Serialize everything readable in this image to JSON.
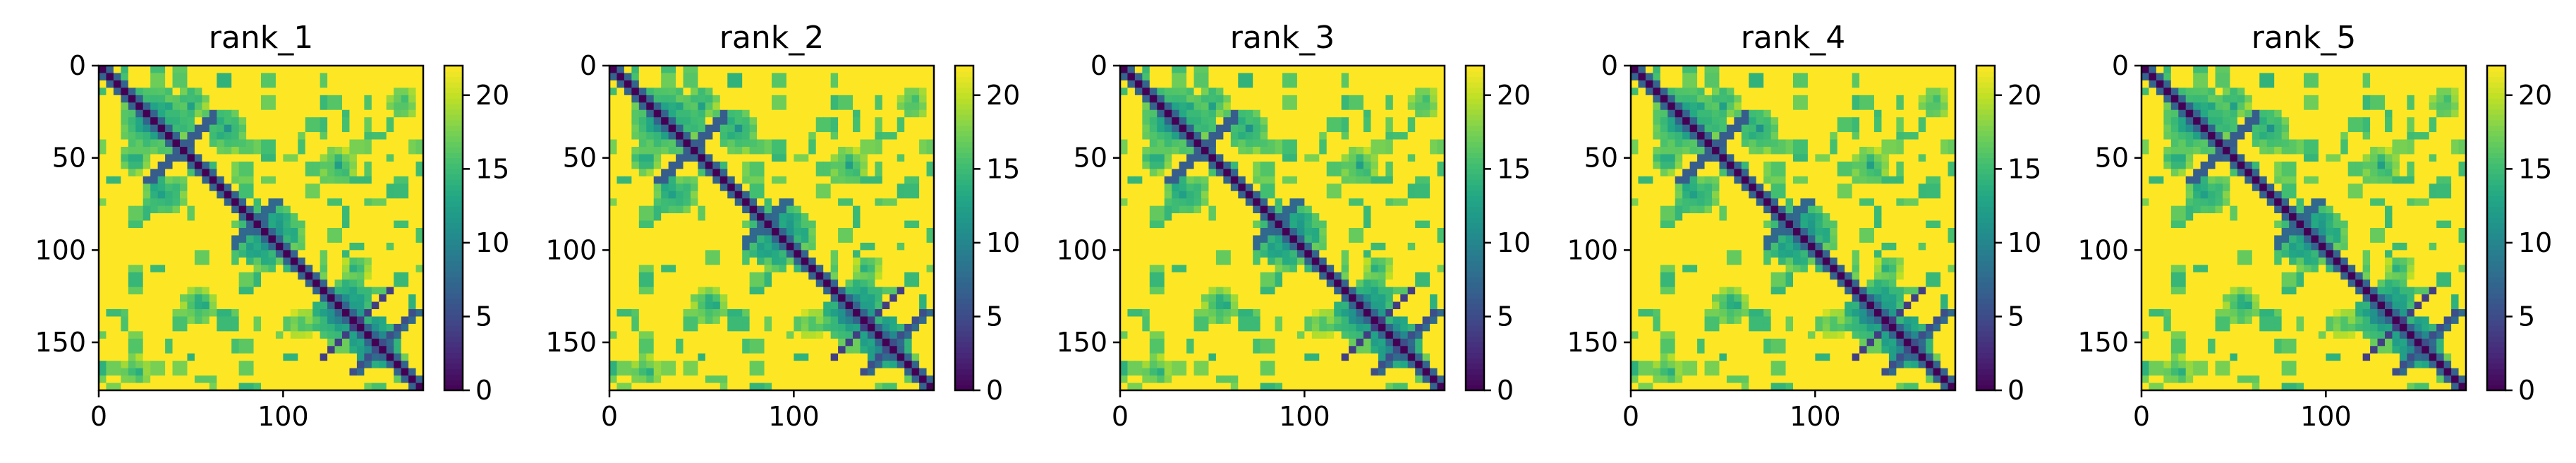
{
  "chart_data": [
    {
      "type": "heatmap",
      "title": "rank_1",
      "xlabel": "",
      "ylabel": "",
      "matrix_size": 176,
      "xlim": [
        0,
        176
      ],
      "ylim": [
        176,
        0
      ],
      "x_ticks": [
        0,
        100
      ],
      "y_ticks": [
        0,
        50,
        100,
        150
      ],
      "colorbar": {
        "range": [
          0,
          22
        ],
        "ticks": [
          0,
          5,
          10,
          15,
          20
        ],
        "colormap": "viridis"
      },
      "diagonal_value": 0,
      "background_value": 22,
      "contact_blocks": [
        {
          "center": [
            30,
            30
          ],
          "radius": 18,
          "value": 9
        },
        {
          "center": [
            20,
            50
          ],
          "radius": 10,
          "value": 11
        },
        {
          "center": [
            70,
            35
          ],
          "radius": 12,
          "value": 10
        },
        {
          "center": [
            95,
            90
          ],
          "radius": 16,
          "value": 9
        },
        {
          "center": [
            135,
            130
          ],
          "radius": 14,
          "value": 8
        },
        {
          "center": [
            150,
            150
          ],
          "radius": 14,
          "value": 7
        },
        {
          "center": [
            165,
            20
          ],
          "radius": 9,
          "value": 12
        },
        {
          "center": [
            130,
            55
          ],
          "radius": 10,
          "value": 11
        },
        {
          "center": [
            110,
            140
          ],
          "radius": 8,
          "value": 12
        }
      ],
      "antidiagonal_crosses": [
        {
          "center": [
            45,
            45
          ],
          "half_length": 20,
          "value": 4
        },
        {
          "center": [
            140,
            140
          ],
          "half_length": 22,
          "value": 4
        },
        {
          "center": [
            155,
            150
          ],
          "half_length": 18,
          "value": 4
        },
        {
          "center": [
            85,
            85
          ],
          "half_length": 14,
          "value": 5
        }
      ]
    },
    {
      "type": "heatmap",
      "title": "rank_2",
      "xlabel": "",
      "ylabel": "",
      "matrix_size": 176,
      "xlim": [
        0,
        176
      ],
      "ylim": [
        176,
        0
      ],
      "x_ticks": [
        0,
        100
      ],
      "y_ticks": [
        0,
        50,
        100,
        150
      ],
      "colorbar": {
        "range": [
          0,
          22
        ],
        "ticks": [
          0,
          5,
          10,
          15,
          20
        ],
        "colormap": "viridis"
      },
      "diagonal_value": 0,
      "background_value": 22,
      "contact_blocks": [
        {
          "center": [
            30,
            30
          ],
          "radius": 18,
          "value": 9
        },
        {
          "center": [
            20,
            50
          ],
          "radius": 10,
          "value": 11
        },
        {
          "center": [
            70,
            35
          ],
          "radius": 12,
          "value": 10
        },
        {
          "center": [
            95,
            90
          ],
          "radius": 16,
          "value": 9
        },
        {
          "center": [
            135,
            130
          ],
          "radius": 14,
          "value": 8
        },
        {
          "center": [
            150,
            150
          ],
          "radius": 14,
          "value": 7
        },
        {
          "center": [
            165,
            20
          ],
          "radius": 9,
          "value": 12
        },
        {
          "center": [
            130,
            55
          ],
          "radius": 10,
          "value": 11
        },
        {
          "center": [
            110,
            140
          ],
          "radius": 8,
          "value": 12
        }
      ],
      "antidiagonal_crosses": [
        {
          "center": [
            45,
            45
          ],
          "half_length": 20,
          "value": 4
        },
        {
          "center": [
            140,
            140
          ],
          "half_length": 22,
          "value": 4
        },
        {
          "center": [
            155,
            150
          ],
          "half_length": 18,
          "value": 4
        },
        {
          "center": [
            85,
            85
          ],
          "half_length": 14,
          "value": 5
        }
      ]
    },
    {
      "type": "heatmap",
      "title": "rank_3",
      "xlabel": "",
      "ylabel": "",
      "matrix_size": 176,
      "xlim": [
        0,
        176
      ],
      "ylim": [
        176,
        0
      ],
      "x_ticks": [
        0,
        100
      ],
      "y_ticks": [
        0,
        50,
        100,
        150
      ],
      "colorbar": {
        "range": [
          0,
          22
        ],
        "ticks": [
          0,
          5,
          10,
          15,
          20
        ],
        "colormap": "viridis"
      },
      "diagonal_value": 0,
      "background_value": 22,
      "contact_blocks": [
        {
          "center": [
            30,
            30
          ],
          "radius": 18,
          "value": 9
        },
        {
          "center": [
            20,
            50
          ],
          "radius": 10,
          "value": 11
        },
        {
          "center": [
            70,
            35
          ],
          "radius": 12,
          "value": 10
        },
        {
          "center": [
            95,
            90
          ],
          "radius": 16,
          "value": 9
        },
        {
          "center": [
            135,
            130
          ],
          "radius": 14,
          "value": 8
        },
        {
          "center": [
            150,
            150
          ],
          "radius": 14,
          "value": 7
        },
        {
          "center": [
            165,
            20
          ],
          "radius": 9,
          "value": 12
        },
        {
          "center": [
            130,
            55
          ],
          "radius": 10,
          "value": 11
        },
        {
          "center": [
            110,
            140
          ],
          "radius": 8,
          "value": 12
        }
      ],
      "antidiagonal_crosses": [
        {
          "center": [
            45,
            45
          ],
          "half_length": 20,
          "value": 4
        },
        {
          "center": [
            140,
            140
          ],
          "half_length": 22,
          "value": 4
        },
        {
          "center": [
            155,
            150
          ],
          "half_length": 18,
          "value": 4
        },
        {
          "center": [
            85,
            85
          ],
          "half_length": 14,
          "value": 5
        }
      ]
    },
    {
      "type": "heatmap",
      "title": "rank_4",
      "xlabel": "",
      "ylabel": "",
      "matrix_size": 176,
      "xlim": [
        0,
        176
      ],
      "ylim": [
        176,
        0
      ],
      "x_ticks": [
        0,
        100
      ],
      "y_ticks": [
        0,
        50,
        100,
        150
      ],
      "colorbar": {
        "range": [
          0,
          22
        ],
        "ticks": [
          0,
          5,
          10,
          15,
          20
        ],
        "colormap": "viridis"
      },
      "diagonal_value": 0,
      "background_value": 22,
      "contact_blocks": [
        {
          "center": [
            30,
            30
          ],
          "radius": 18,
          "value": 9
        },
        {
          "center": [
            20,
            50
          ],
          "radius": 10,
          "value": 11
        },
        {
          "center": [
            70,
            35
          ],
          "radius": 12,
          "value": 10
        },
        {
          "center": [
            95,
            90
          ],
          "radius": 16,
          "value": 9
        },
        {
          "center": [
            135,
            130
          ],
          "radius": 14,
          "value": 8
        },
        {
          "center": [
            150,
            150
          ],
          "radius": 14,
          "value": 7
        },
        {
          "center": [
            165,
            20
          ],
          "radius": 9,
          "value": 12
        },
        {
          "center": [
            130,
            55
          ],
          "radius": 10,
          "value": 11
        },
        {
          "center": [
            110,
            140
          ],
          "radius": 8,
          "value": 12
        }
      ],
      "antidiagonal_crosses": [
        {
          "center": [
            45,
            45
          ],
          "half_length": 20,
          "value": 4
        },
        {
          "center": [
            140,
            140
          ],
          "half_length": 22,
          "value": 4
        },
        {
          "center": [
            155,
            150
          ],
          "half_length": 18,
          "value": 4
        },
        {
          "center": [
            85,
            85
          ],
          "half_length": 14,
          "value": 5
        }
      ]
    },
    {
      "type": "heatmap",
      "title": "rank_5",
      "xlabel": "",
      "ylabel": "",
      "matrix_size": 176,
      "xlim": [
        0,
        176
      ],
      "ylim": [
        176,
        0
      ],
      "x_ticks": [
        0,
        100
      ],
      "y_ticks": [
        0,
        50,
        100,
        150
      ],
      "colorbar": {
        "range": [
          0,
          22
        ],
        "ticks": [
          0,
          5,
          10,
          15,
          20
        ],
        "colormap": "viridis"
      },
      "diagonal_value": 0,
      "background_value": 22,
      "contact_blocks": [
        {
          "center": [
            30,
            30
          ],
          "radius": 18,
          "value": 9
        },
        {
          "center": [
            20,
            50
          ],
          "radius": 10,
          "value": 11
        },
        {
          "center": [
            70,
            35
          ],
          "radius": 12,
          "value": 10
        },
        {
          "center": [
            95,
            90
          ],
          "radius": 16,
          "value": 9
        },
        {
          "center": [
            135,
            130
          ],
          "radius": 14,
          "value": 8
        },
        {
          "center": [
            150,
            150
          ],
          "radius": 14,
          "value": 7
        },
        {
          "center": [
            165,
            20
          ],
          "radius": 9,
          "value": 12
        },
        {
          "center": [
            130,
            55
          ],
          "radius": 10,
          "value": 11
        },
        {
          "center": [
            110,
            140
          ],
          "radius": 8,
          "value": 12
        }
      ],
      "antidiagonal_crosses": [
        {
          "center": [
            45,
            45
          ],
          "half_length": 20,
          "value": 4
        },
        {
          "center": [
            140,
            140
          ],
          "half_length": 22,
          "value": 4
        },
        {
          "center": [
            155,
            150
          ],
          "half_length": 18,
          "value": 4
        },
        {
          "center": [
            85,
            85
          ],
          "half_length": 14,
          "value": 5
        }
      ]
    }
  ]
}
